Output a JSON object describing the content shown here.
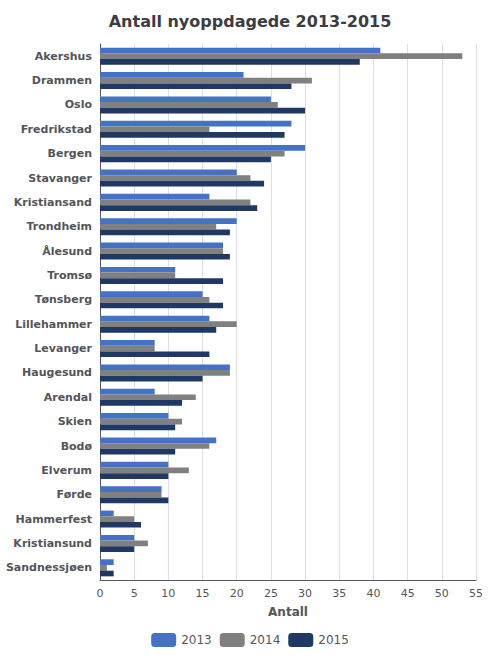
{
  "chart_data": {
    "type": "bar",
    "orientation": "horizontal",
    "title": "Antall nyoppdagede 2013-2015",
    "xlabel": "Antall",
    "categories": [
      "Akershus",
      "Drammen",
      "Oslo",
      "Fredrikstad",
      "Bergen",
      "Stavanger",
      "Kristiansand",
      "Trondheim",
      "Ålesund",
      "Tromsø",
      "Tønsberg",
      "Lillehammer",
      "Levanger",
      "Haugesund",
      "Arendal",
      "Skien",
      "Bodø",
      "Elverum",
      "Førde",
      "Hammerfest",
      "Kristiansund",
      "Sandnessjøen"
    ],
    "series": [
      {
        "name": "2013",
        "color": "#4472C4",
        "values": [
          41,
          21,
          25,
          28,
          30,
          20,
          16,
          20,
          18,
          11,
          15,
          16,
          8,
          19,
          8,
          10,
          17,
          10,
          9,
          2,
          5,
          2
        ]
      },
      {
        "name": "2014",
        "color": "#808080",
        "values": [
          53,
          31,
          26,
          16,
          27,
          22,
          22,
          17,
          18,
          11,
          16,
          20,
          8,
          19,
          14,
          12,
          16,
          13,
          9,
          5,
          7,
          1
        ]
      },
      {
        "name": "2015",
        "color": "#1F3864",
        "values": [
          38,
          28,
          30,
          27,
          25,
          24,
          23,
          19,
          19,
          18,
          18,
          17,
          16,
          15,
          12,
          11,
          11,
          10,
          10,
          6,
          5,
          2
        ]
      }
    ],
    "xlim": [
      0,
      55
    ],
    "xticks": [
      0,
      5,
      10,
      15,
      20,
      25,
      30,
      35,
      40,
      45,
      50,
      55
    ],
    "grid": true,
    "legend": "bottom"
  }
}
